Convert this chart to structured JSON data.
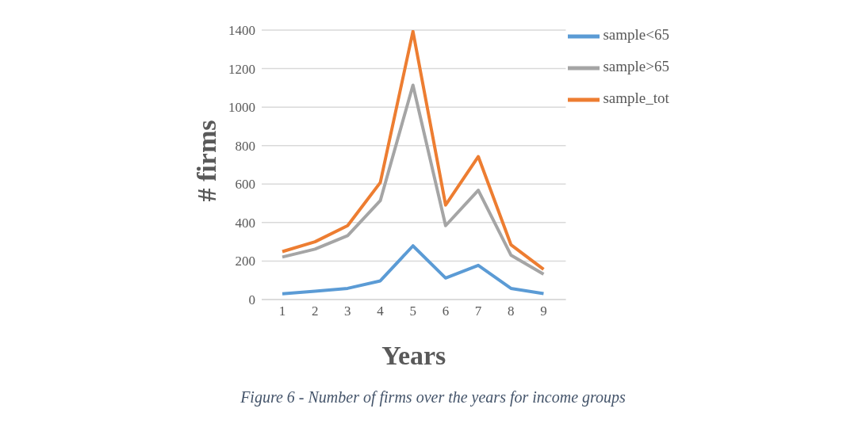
{
  "chart_data": {
    "type": "line",
    "xlabel": "Years",
    "ylabel": "# firms",
    "categories": [
      "1",
      "2",
      "3",
      "4",
      "5",
      "6",
      "7",
      "8",
      "9"
    ],
    "series": [
      {
        "name": "sample<65",
        "color": "#5b9bd5",
        "values": [
          30,
          43,
          58,
          97,
          279,
          112,
          178,
          58,
          31
        ]
      },
      {
        "name": "sample_tot",
        "color": "#ed7d31",
        "values": [
          249,
          300,
          384,
          608,
          1393,
          491,
          743,
          285,
          157
        ]
      },
      {
        "name": "sample>65",
        "color": "#a5a5a5",
        "values": [
          221,
          262,
          332,
          514,
          1114,
          384,
          568,
          231,
          132
        ]
      }
    ],
    "ylim": [
      0,
      1400
    ],
    "yticks": [
      0,
      200,
      400,
      600,
      800,
      1000,
      1200,
      1400
    ],
    "grid": "y",
    "legend": "top right",
    "marker": "none",
    "line_style": "solid",
    "annotations": [
      "Figure 6 - Number of firms over the years for income groups"
    ]
  }
}
